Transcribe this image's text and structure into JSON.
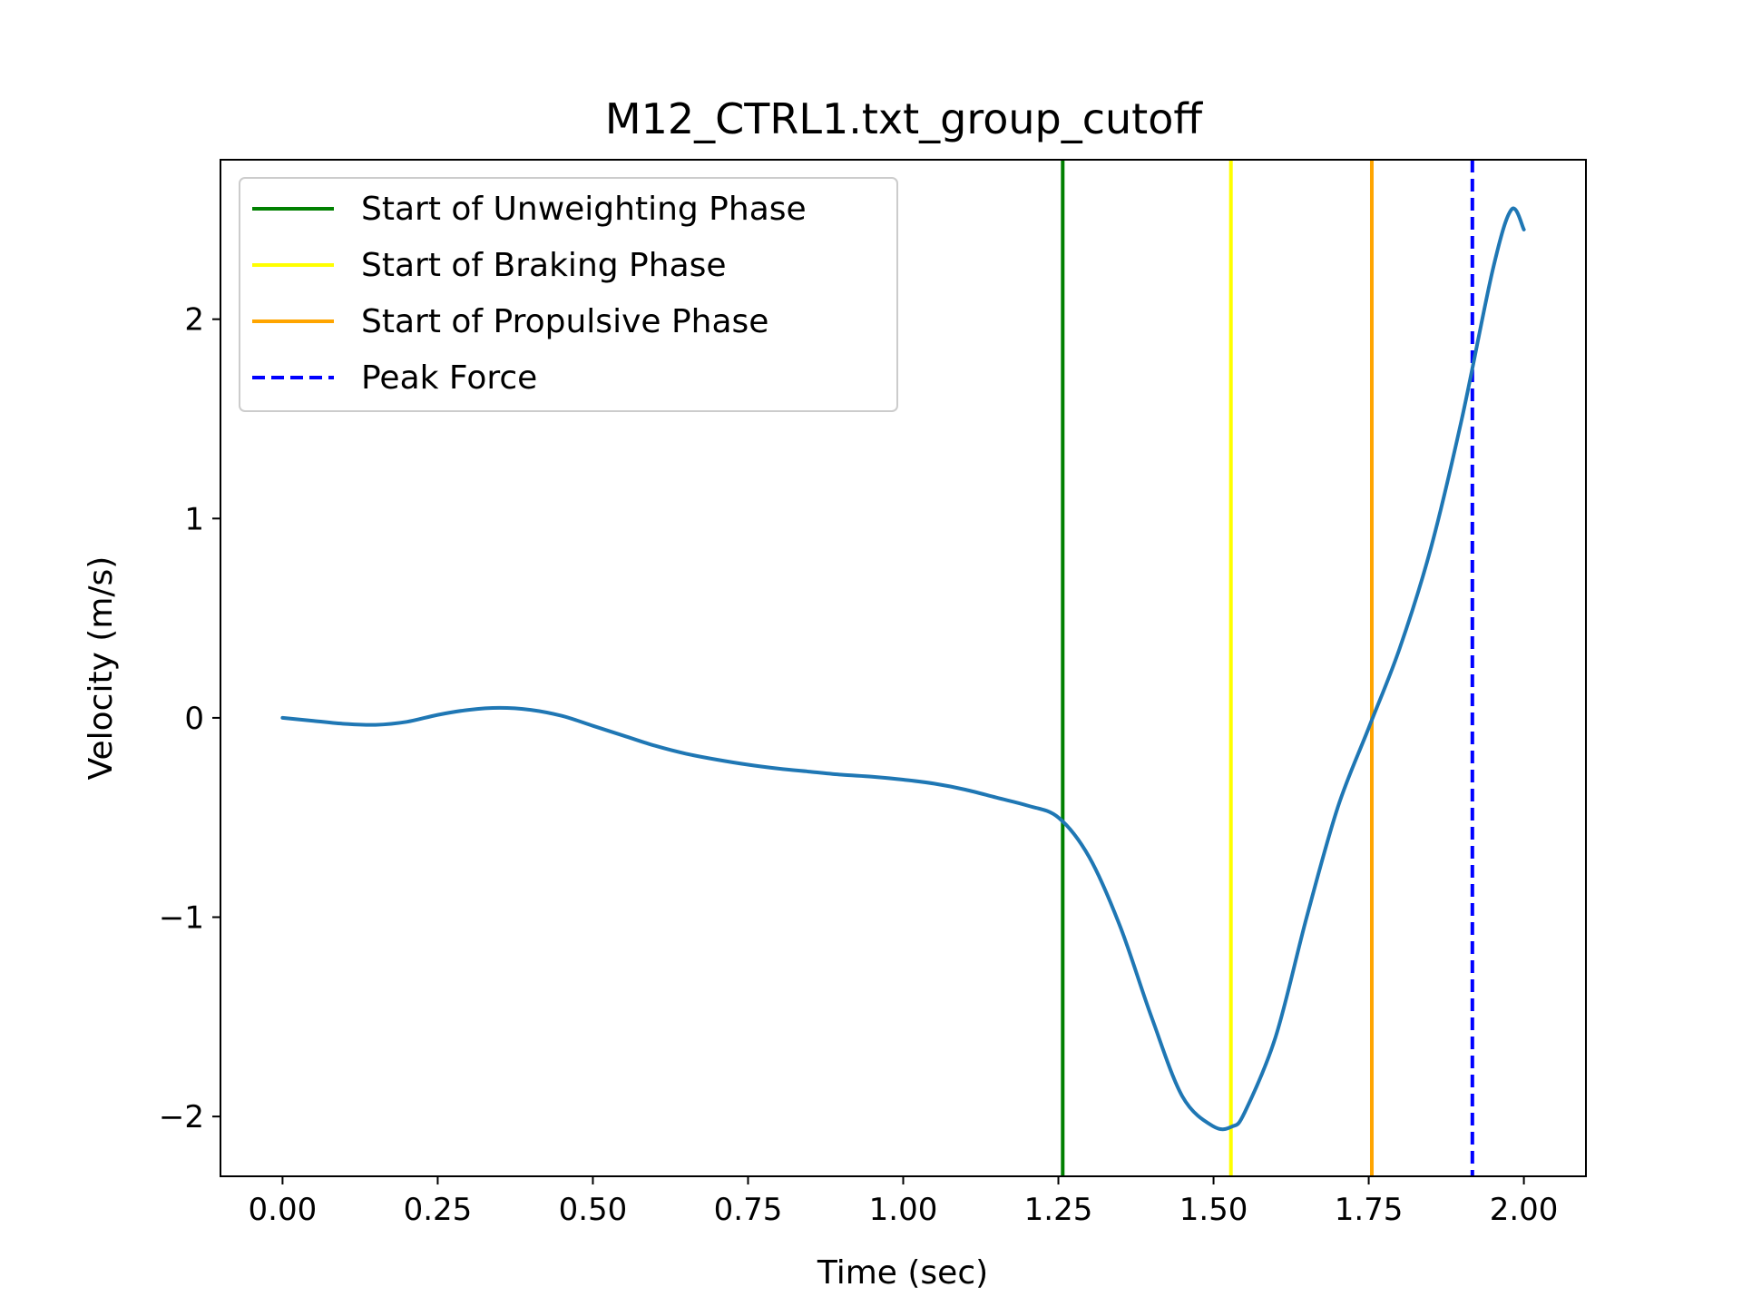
{
  "chart_data": {
    "type": "line",
    "title": "M12_CTRL1.txt_group_cutoff",
    "xlabel": "Time (sec)",
    "ylabel": "Velocity (m/s)",
    "xlim": [
      -0.1,
      2.1
    ],
    "ylim": [
      -2.3,
      2.8
    ],
    "x_ticks": [
      0.0,
      0.25,
      0.5,
      0.75,
      1.0,
      1.25,
      1.5,
      1.75,
      2.0
    ],
    "x_tick_labels": [
      "0.00",
      "0.25",
      "0.50",
      "0.75",
      "1.00",
      "1.25",
      "1.50",
      "1.75",
      "2.00"
    ],
    "y_ticks": [
      -2,
      -1,
      0,
      1,
      2
    ],
    "y_tick_labels": [
      "−2",
      "−1",
      "0",
      "1",
      "2"
    ],
    "grid": false,
    "legend_position": "top-left",
    "series": [
      {
        "color": "#1f77b4",
        "x": [
          0.0,
          0.05,
          0.1,
          0.15,
          0.2,
          0.25,
          0.3,
          0.35,
          0.4,
          0.45,
          0.5,
          0.55,
          0.6,
          0.65,
          0.7,
          0.75,
          0.8,
          0.85,
          0.9,
          0.95,
          1.0,
          1.05,
          1.1,
          1.15,
          1.2,
          1.25,
          1.3,
          1.35,
          1.4,
          1.45,
          1.5,
          1.53,
          1.55,
          1.6,
          1.65,
          1.7,
          1.75,
          1.8,
          1.85,
          1.9,
          1.95,
          1.98,
          2.0
        ],
        "y": [
          0.0,
          -0.015,
          -0.03,
          -0.035,
          -0.02,
          0.015,
          0.04,
          0.05,
          0.04,
          0.01,
          -0.04,
          -0.09,
          -0.14,
          -0.18,
          -0.21,
          -0.235,
          -0.255,
          -0.27,
          -0.285,
          -0.295,
          -0.31,
          -0.33,
          -0.36,
          -0.4,
          -0.44,
          -0.5,
          -0.7,
          -1.05,
          -1.5,
          -1.9,
          -2.05,
          -2.05,
          -1.98,
          -1.6,
          -1.0,
          -0.45,
          -0.05,
          0.35,
          0.85,
          1.5,
          2.25,
          2.55,
          2.45
        ]
      }
    ],
    "vertical_lines": [
      {
        "name": "Start of Unweighting Phase",
        "x": 1.257,
        "color": "#008000",
        "style": "solid"
      },
      {
        "name": "Start of Braking Phase",
        "x": 1.528,
        "color": "#ffff00",
        "style": "solid"
      },
      {
        "name": "Start of Propulsive Phase",
        "x": 1.755,
        "color": "#ffa500",
        "style": "solid"
      },
      {
        "name": "Peak Force",
        "x": 1.917,
        "color": "#0000ff",
        "style": "dashed"
      }
    ]
  }
}
